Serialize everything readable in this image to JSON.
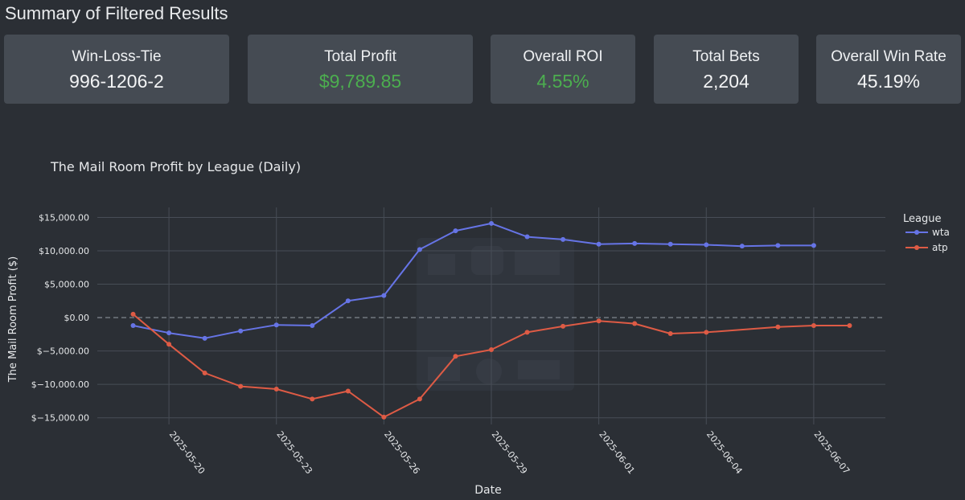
{
  "summary": {
    "title": "Summary of Filtered Results",
    "cards": [
      {
        "label": "Win-Loss-Tie",
        "value": "996-1206-2",
        "positive": false
      },
      {
        "label": "Total Profit",
        "value": "$9,789.85",
        "positive": true
      },
      {
        "label": "Overall ROI",
        "value": "4.55%",
        "positive": true
      },
      {
        "label": "Total Bets",
        "value": "2,204",
        "positive": false
      },
      {
        "label": "Overall Win Rate",
        "value": "45.19%",
        "positive": false
      }
    ]
  },
  "colors": {
    "background": "#2b2f35",
    "card": "#454b53",
    "positive": "#4cae4f",
    "wta": "#6674e6",
    "atp": "#de5b45"
  },
  "chart_data": {
    "type": "line",
    "title": "The Mail Room Profit by League (Daily)",
    "xlabel": "Date",
    "ylabel": "The Mail Room Profit ($)",
    "ylim": [
      -16000,
      16500
    ],
    "xlim": [
      "2025-05-18",
      "2025-06-09"
    ],
    "x_ticks": [
      "2025-05-20",
      "2025-05-23",
      "2025-05-26",
      "2025-05-29",
      "2025-06-01",
      "2025-06-04",
      "2025-06-07"
    ],
    "y_ticks": [
      15000,
      10000,
      5000,
      0,
      -5000,
      -10000,
      -15000
    ],
    "y_tick_labels": [
      "$15,000.00",
      "$10,000.00",
      "$5,000.00",
      "$0.00",
      "$−5,000.00",
      "$−10,000.00",
      "$−15,000.00"
    ],
    "grid": true,
    "zero_line": "dashed",
    "legend_title": "League",
    "legend_position": "top-right",
    "series": [
      {
        "name": "wta",
        "color": "#6674e6",
        "x": [
          "2025-05-19",
          "2025-05-20",
          "2025-05-21",
          "2025-05-22",
          "2025-05-23",
          "2025-05-24",
          "2025-05-25",
          "2025-05-26",
          "2025-05-27",
          "2025-05-28",
          "2025-05-29",
          "2025-05-30",
          "2025-05-31",
          "2025-06-01",
          "2025-06-02",
          "2025-06-03",
          "2025-06-04",
          "2025-06-05",
          "2025-06-06",
          "2025-06-07"
        ],
        "y": [
          -1200,
          -2300,
          -3100,
          -2000,
          -1100,
          -1200,
          2500,
          3300,
          10200,
          13000,
          14100,
          12100,
          11700,
          11000,
          11100,
          11000,
          10900,
          10700,
          10800,
          10800
        ]
      },
      {
        "name": "atp",
        "color": "#de5b45",
        "x": [
          "2025-05-19",
          "2025-05-20",
          "2025-05-21",
          "2025-05-22",
          "2025-05-23",
          "2025-05-24",
          "2025-05-25",
          "2025-05-26",
          "2025-05-27",
          "2025-05-28",
          "2025-05-29",
          "2025-05-30",
          "2025-05-31",
          "2025-06-01",
          "2025-06-02",
          "2025-06-03",
          "2025-06-04",
          "2025-06-06",
          "2025-06-07",
          "2025-06-08"
        ],
        "y": [
          500,
          -4000,
          -8300,
          -10300,
          -10700,
          -12200,
          -11000,
          -14900,
          -12200,
          -5800,
          -4800,
          -2200,
          -1300,
          -500,
          -900,
          -2400,
          -2200,
          -1400,
          -1200,
          -1200
        ]
      }
    ]
  }
}
